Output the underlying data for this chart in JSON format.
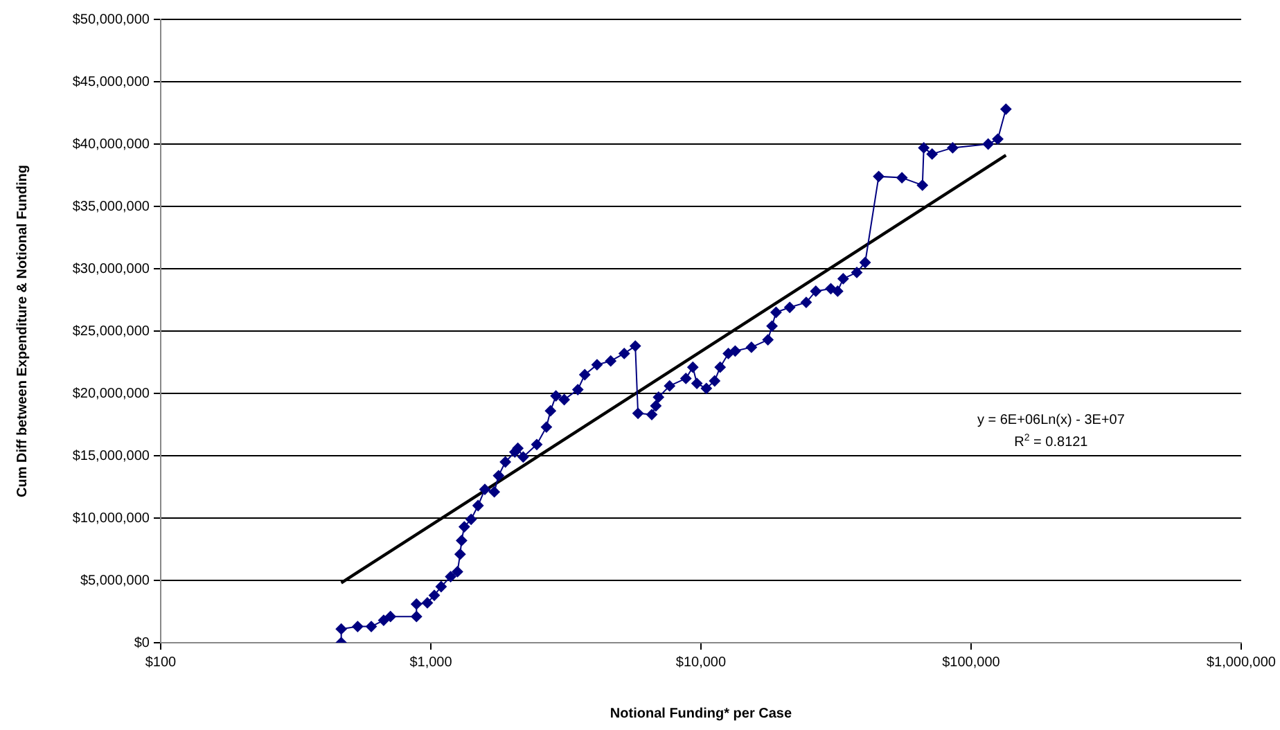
{
  "chart_data": {
    "type": "line",
    "xlabel": "Notional Funding* per Case",
    "ylabel": "Cum Diff between Expenditure & Notional Funding",
    "log": "x",
    "grid": "y",
    "legend": false,
    "xlim": [
      100,
      1000000
    ],
    "xticks": [
      {
        "value": 100,
        "label": "$100"
      },
      {
        "value": 1000,
        "label": "$1,000"
      },
      {
        "value": 10000,
        "label": "$10,000"
      },
      {
        "value": 100000,
        "label": "$100,000"
      },
      {
        "value": 1000000,
        "label": "$1,000,000"
      }
    ],
    "ylim": [
      0,
      50000000
    ],
    "yticks": [
      {
        "value": 0,
        "label": "$0"
      },
      {
        "value": 5000000,
        "label": "$5,000,000"
      },
      {
        "value": 10000000,
        "label": "$10,000,000"
      },
      {
        "value": 15000000,
        "label": "$15,000,000"
      },
      {
        "value": 20000000,
        "label": "$20,000,000"
      },
      {
        "value": 25000000,
        "label": "$25,000,000"
      },
      {
        "value": 30000000,
        "label": "$30,000,000"
      },
      {
        "value": 35000000,
        "label": "$35,000,000"
      },
      {
        "value": 40000000,
        "label": "$40,000,000"
      },
      {
        "value": 45000000,
        "label": "$45,000,000"
      },
      {
        "value": 50000000,
        "label": "$50,000,000"
      }
    ],
    "series": [
      {
        "type": "line",
        "color": "#000080",
        "marker": "diamond",
        "line_style": "solid",
        "x": [
          466,
          466,
          536,
          602,
          669,
          709,
          885,
          885,
          971,
          1030,
          1092,
          1184,
          1255,
          1284,
          1300,
          1330,
          1410,
          1496,
          1585,
          1718,
          1782,
          1888,
          2047,
          2100,
          2198,
          2468,
          2679,
          2774,
          2905,
          3118,
          3501,
          3715,
          4124,
          4634,
          5200,
          5715,
          5848,
          6577,
          6809,
          6967,
          7656,
          8796,
          9333,
          9660,
          10475,
          11240,
          11780,
          12630,
          13390,
          15380,
          17700,
          18330,
          18970,
          21320,
          24530,
          26620,
          30260,
          32070,
          33620,
          37760,
          40550,
          45500,
          55470,
          66070,
          66840,
          71740,
          85500,
          115700,
          125600,
          134600
        ],
        "values": [
          0,
          1100000,
          1300000,
          1300000,
          1800000,
          2100000,
          2100000,
          3100000,
          3200000,
          3800000,
          4500000,
          5300000,
          5700000,
          7100000,
          8200000,
          9300000,
          9900000,
          11000000,
          12300000,
          12100000,
          13400000,
          14500000,
          15300000,
          15600000,
          14900000,
          15900000,
          17300000,
          18600000,
          19800000,
          19500000,
          20300000,
          21500000,
          22300000,
          22600000,
          23200000,
          23800000,
          18400000,
          18300000,
          19000000,
          19700000,
          20600000,
          21200000,
          22100000,
          20800000,
          20400000,
          21000000,
          22100000,
          23200000,
          23400000,
          23700000,
          24300000,
          25400000,
          26500000,
          26900000,
          27300000,
          28200000,
          28400000,
          28200000,
          29200000,
          29700000,
          30500000,
          37400000,
          37300000,
          36700000,
          39700000,
          39200000,
          39700000,
          40000000,
          40400000,
          42800000
        ]
      },
      {
        "type": "line",
        "color": "#000000",
        "marker": "none",
        "line_style": "solid",
        "x": [
          466,
          134600
        ],
        "values": [
          4800000,
          39100000
        ]
      }
    ],
    "annotations": [
      "y = 6E+06Ln(x) - 3E+07",
      "R$^{2}$ = 0.8121"
    ]
  }
}
